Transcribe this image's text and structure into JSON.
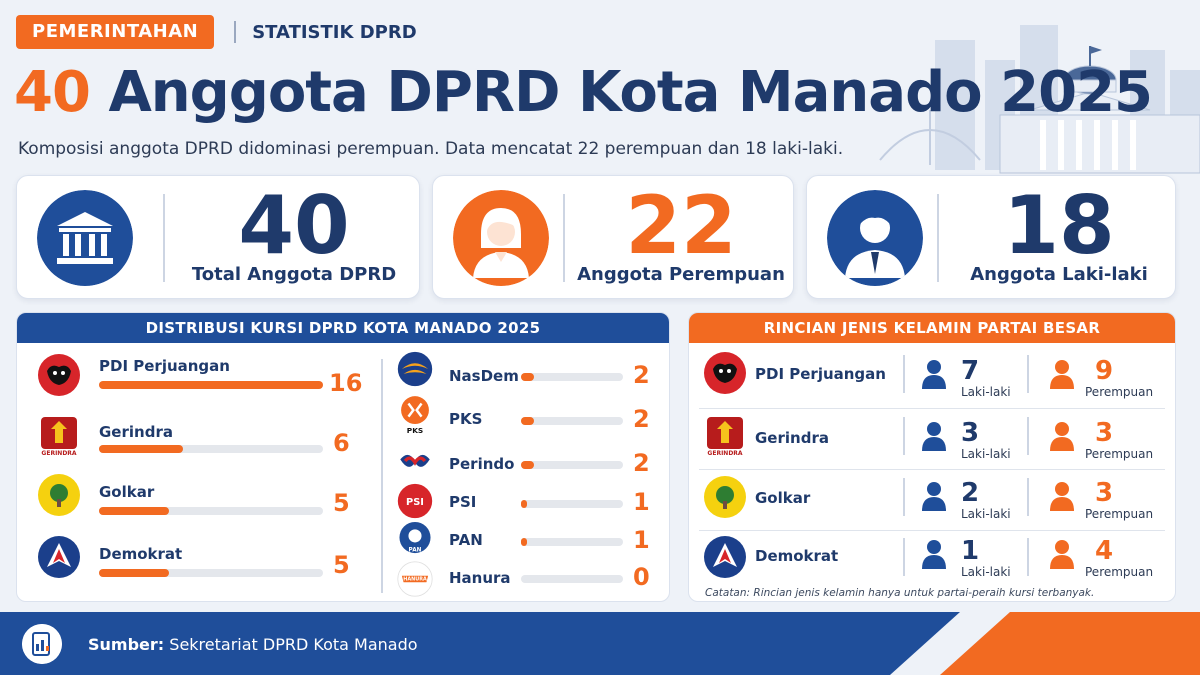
{
  "category_tag": "PEMERINTAHAN",
  "section_tag": "STATISTIK DPRD",
  "headline": {
    "number": "40",
    "text": "Anggota DPRD Kota Manado 2025"
  },
  "subtitle": "Komposisi anggota DPRD didominasi perempuan. Data mencatat 22 perempuan dan 18 laki-laki.",
  "stats": [
    {
      "value": "40",
      "label": "Total Anggota DPRD",
      "icon": "parliament-building-icon",
      "color": "#1f3a6b"
    },
    {
      "value": "22",
      "label": "Anggota Perempuan",
      "icon": "woman-icon",
      "color": "#f26a21"
    },
    {
      "value": "18",
      "label": "Anggota Laki-laki",
      "icon": "man-icon",
      "color": "#1f3a6b"
    }
  ],
  "seat_distribution": {
    "title": "DISTRIBUSI KURSI DPRD KOTA MANADO 2025",
    "max": 16,
    "parties": [
      {
        "name": "PDI Perjuangan",
        "seats": 16
      },
      {
        "name": "Gerindra",
        "seats": 6
      },
      {
        "name": "Golkar",
        "seats": 5
      },
      {
        "name": "Demokrat",
        "seats": 5
      },
      {
        "name": "NasDem",
        "seats": 2
      },
      {
        "name": "PKS",
        "seats": 2
      },
      {
        "name": "Perindo",
        "seats": 2
      },
      {
        "name": "PSI",
        "seats": 1
      },
      {
        "name": "PAN",
        "seats": 1
      },
      {
        "name": "Hanura",
        "seats": 0
      }
    ]
  },
  "gender_breakdown": {
    "title": "RINCIAN JENIS KELAMIN PARTAI BESAR",
    "male_label": "Laki-laki",
    "female_label": "Perempuan",
    "parties": [
      {
        "name": "PDI Perjuangan",
        "male": 7,
        "female": 9
      },
      {
        "name": "Gerindra",
        "male": 3,
        "female": 3
      },
      {
        "name": "Golkar",
        "male": 2,
        "female": 3
      },
      {
        "name": "Demokrat",
        "male": 1,
        "female": 4
      }
    ],
    "note": "Catatan: Rincian jenis kelamin hanya untuk partai-peraih kursi terbanyak."
  },
  "source": {
    "label": "Sumber:",
    "text": "Sekretariat DPRD Kota Manado"
  },
  "logo_text": {
    "gerindra": "GERINDRA",
    "pks": "PKS",
    "psi": "PSI",
    "pan": "PAN",
    "hanura": "HANURA"
  },
  "colors": {
    "navy": "#1f3a6b",
    "orange": "#f26a21",
    "pdi_red": "#d7252a",
    "golkar_yellow": "#f5d10f",
    "nasdem_blue": "#1b3f8b"
  }
}
